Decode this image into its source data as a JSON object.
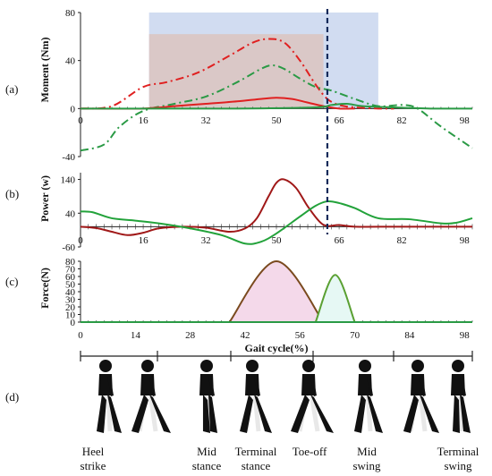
{
  "figure": {
    "panel_labels": [
      "(a)",
      "(b)",
      "(c)",
      "(d)"
    ],
    "phase_labels": [
      [
        "Heel",
        "strike"
      ],
      [
        "Mid",
        "stance"
      ],
      [
        "Terminal",
        "stance"
      ],
      [
        "Toe-off"
      ],
      [
        "Mid",
        "swing"
      ],
      [
        "Terminal",
        "swing"
      ]
    ],
    "toe_off_percent": 63
  },
  "chart_data": [
    {
      "type": "line",
      "panel": "(a)",
      "ylabel": "Moment (Nm)",
      "xlim": [
        0,
        100
      ],
      "ylim": [
        -40,
        80
      ],
      "xticks": [
        0,
        16,
        32,
        50,
        66,
        82,
        98
      ],
      "yticks": [
        -40,
        0,
        40,
        80
      ],
      "shaded_regions": [
        {
          "x": [
            17.5,
            76
          ],
          "y": [
            0,
            80
          ],
          "color": "#c9d6ee"
        },
        {
          "x": [
            17.5,
            62
          ],
          "y": [
            0,
            62
          ],
          "color": "#dcc4c0"
        }
      ],
      "series": [
        {
          "style": "dash-dot",
          "color": "#e02020",
          "x": [
            0,
            8,
            16,
            22,
            30,
            38,
            44,
            48,
            52,
            56,
            60,
            63,
            66,
            70,
            76,
            80
          ],
          "values": [
            0,
            2,
            18,
            22,
            30,
            44,
            55,
            58,
            55,
            40,
            20,
            8,
            3,
            1,
            0,
            0
          ]
        },
        {
          "style": "dash-dot",
          "color": "#2a9a45",
          "x": [
            0,
            6,
            10,
            16,
            24,
            32,
            40,
            46,
            49,
            52,
            56,
            60,
            64,
            70,
            76,
            82,
            86,
            92,
            100
          ],
          "values": [
            -35,
            -30,
            -15,
            -2,
            4,
            10,
            22,
            33,
            36,
            33,
            25,
            18,
            15,
            8,
            2,
            3,
            0,
            -15,
            -33
          ]
        },
        {
          "style": "solid",
          "color": "#e02020",
          "x": [
            0,
            16,
            24,
            32,
            40,
            46,
            50,
            54,
            58,
            62,
            66,
            70
          ],
          "values": [
            0,
            0,
            2,
            4,
            6,
            8,
            9,
            8,
            5,
            2,
            0,
            0
          ]
        },
        {
          "style": "solid",
          "color": "#2a9a45",
          "x": [
            0,
            20,
            40,
            60,
            64,
            68,
            72,
            80,
            90,
            100
          ],
          "values": [
            0,
            0,
            0,
            1,
            3,
            4,
            2,
            1,
            0,
            0
          ]
        }
      ]
    },
    {
      "type": "line",
      "panel": "(b)",
      "ylabel": "Power (w)",
      "xlim": [
        0,
        100
      ],
      "ylim": [
        -60,
        160
      ],
      "xticks": [
        0,
        16,
        32,
        50,
        66,
        82,
        98
      ],
      "yticks": [
        -60,
        40,
        140
      ],
      "series": [
        {
          "style": "solid",
          "color": "#a01818",
          "x": [
            0,
            4,
            8,
            12,
            16,
            20,
            26,
            32,
            38,
            42,
            45,
            48,
            50,
            52,
            55,
            58,
            61,
            63,
            66,
            70,
            80,
            90,
            100
          ],
          "values": [
            0,
            -4,
            -15,
            -25,
            -18,
            -5,
            0,
            -3,
            -15,
            -5,
            25,
            90,
            130,
            140,
            115,
            60,
            15,
            2,
            5,
            0,
            0,
            0,
            0
          ]
        },
        {
          "style": "solid",
          "color": "#22a23a",
          "x": [
            0,
            3,
            8,
            14,
            20,
            28,
            36,
            42,
            46,
            50,
            56,
            60,
            63,
            66,
            70,
            76,
            84,
            92,
            96,
            100
          ],
          "values": [
            45,
            43,
            25,
            18,
            10,
            -5,
            -25,
            -50,
            -45,
            -20,
            30,
            62,
            75,
            70,
            55,
            25,
            22,
            10,
            12,
            25
          ]
        }
      ]
    },
    {
      "type": "line",
      "panel": "(c)",
      "ylabel": "Force(N)",
      "xlabel": "Gait cycle(%)",
      "xlim": [
        0,
        100
      ],
      "ylim": [
        0,
        80
      ],
      "xticks": [
        0,
        14,
        28,
        42,
        56,
        70,
        84,
        98
      ],
      "yticks": [
        0,
        10,
        20,
        30,
        40,
        50,
        60,
        70,
        80
      ],
      "series": [
        {
          "style": "solid",
          "color": "#7a4a1e",
          "fill": "#f4d9ea",
          "x": [
            38,
            50,
            62
          ],
          "values": [
            0,
            80,
            0
          ]
        },
        {
          "style": "solid",
          "color": "#5aa032",
          "fill": "#e6f8f4",
          "x": [
            60,
            65,
            70
          ],
          "values": [
            0,
            62,
            0
          ]
        },
        {
          "style": "solid",
          "color": "#2a9a45",
          "x": [
            0,
            100
          ],
          "values": [
            0,
            0
          ]
        }
      ]
    }
  ]
}
